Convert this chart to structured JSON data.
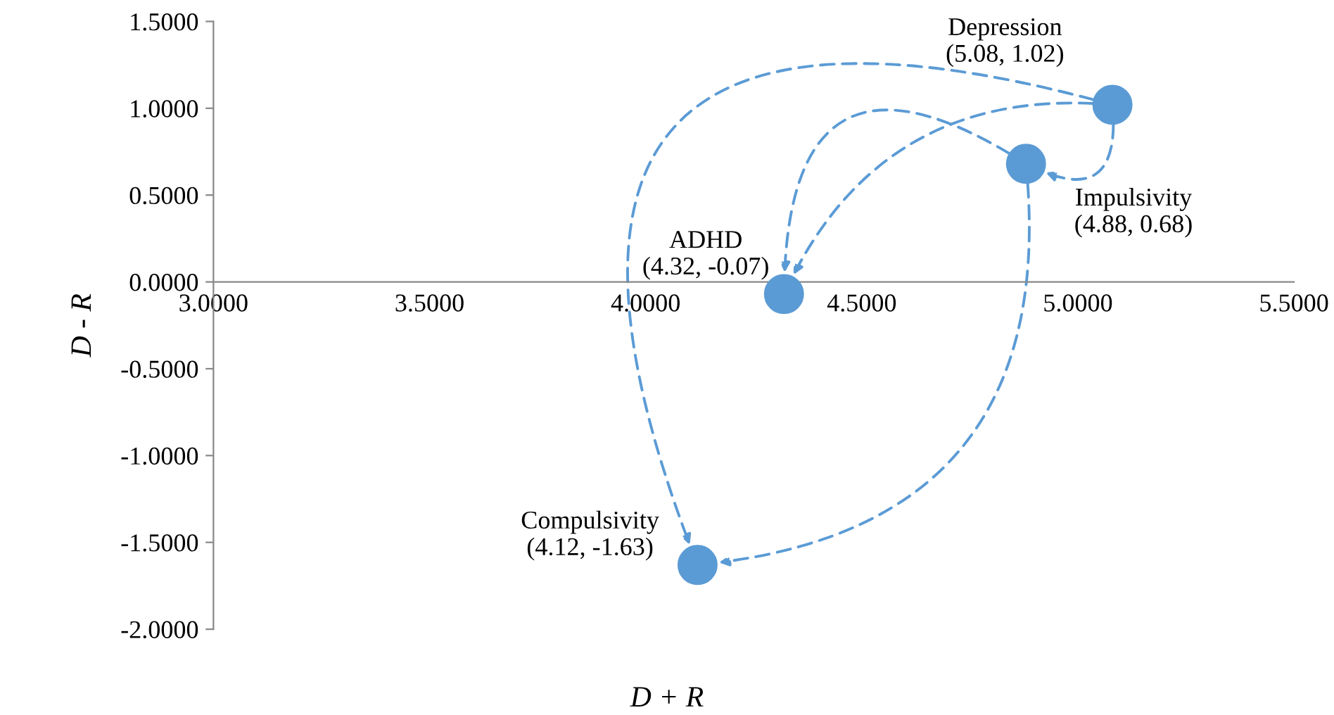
{
  "chart_data": {
    "type": "scatter",
    "xlabel": "D + R",
    "ylabel": "D - R",
    "x": [
      5.08,
      4.88,
      4.32,
      4.12
    ],
    "series": [
      {
        "color": "#5b9bd5",
        "values": [
          1.02,
          0.68,
          -0.07,
          -1.63
        ]
      }
    ],
    "annotations": [
      {
        "text": "Depression\n(5.08, 1.02)",
        "x": 5.08,
        "y": 1.02
      },
      {
        "text": "Impulsivity\n(4.88, 0.68)",
        "x": 4.88,
        "y": 0.68
      },
      {
        "text": "ADHD\n(4.32, -0.07)",
        "x": 4.32,
        "y": -0.07
      },
      {
        "text": "Compulsivity\n(4.12, -1.63)",
        "x": 4.12,
        "y": -1.63
      }
    ],
    "xlim": [
      3.0,
      5.5
    ],
    "xticks": [
      {
        "value": 3.0,
        "label": "3.0000"
      },
      {
        "value": 3.5,
        "label": "3.5000"
      },
      {
        "value": 4.0,
        "label": "4.0000"
      },
      {
        "value": 4.5,
        "label": "4.5000"
      },
      {
        "value": 5.0,
        "label": "5.0000"
      },
      {
        "value": 5.5,
        "label": "5.5000"
      }
    ],
    "ylim": [
      -2.0,
      1.5
    ],
    "yticks": [
      {
        "value": -2.0,
        "label": "-2.0000"
      },
      {
        "value": -1.5,
        "label": "-1.5000"
      },
      {
        "value": -1.0,
        "label": "-1.0000"
      },
      {
        "value": -0.5,
        "label": "-0.5000"
      },
      {
        "value": 0.0,
        "label": "0.0000"
      },
      {
        "value": 0.5,
        "label": "0.5000"
      },
      {
        "value": 1.0,
        "label": "1.0000"
      },
      {
        "value": 1.5,
        "label": "1.5000"
      }
    ],
    "marker": "circle",
    "grid": false,
    "legend": false
  }
}
